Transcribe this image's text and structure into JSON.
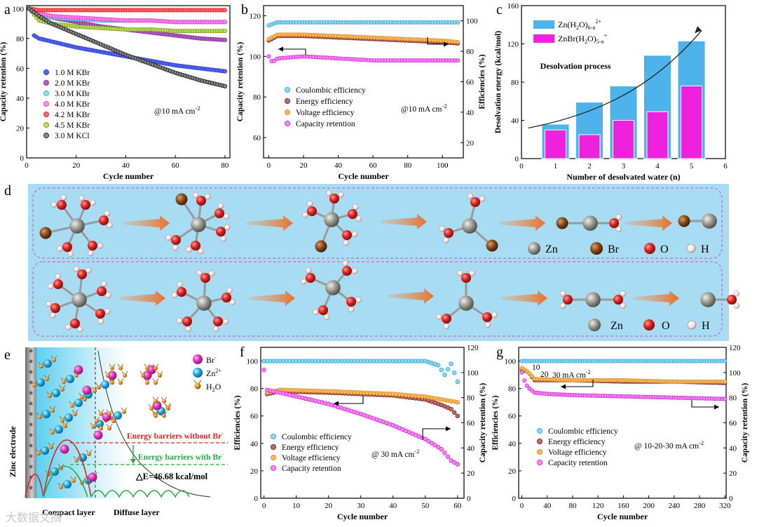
{
  "watermark": "大数据文摘",
  "panel_a": {
    "letter": "a",
    "chart_data": {
      "type": "scatter",
      "xlabel": "Cycle number",
      "ylabel": "Capacity retention (%)",
      "xlim": [
        0,
        82
      ],
      "ylim": [
        0,
        102
      ],
      "xticks": [
        0,
        20,
        40,
        60,
        80
      ],
      "yticks": [
        0,
        20,
        40,
        60,
        80,
        100
      ],
      "annotation": "@10 mA cm",
      "annotation_sup": "-2",
      "series": [
        {
          "name": "1.0 M KBr",
          "color": "#2233cc",
          "fill": "#5566ee",
          "x": [
            3,
            5,
            10,
            15,
            20,
            30,
            40,
            50,
            60,
            70,
            80
          ],
          "y": [
            82,
            80,
            78,
            76,
            74,
            71,
            68,
            65,
            62,
            60,
            58
          ]
        },
        {
          "name": "2.0 M KBr",
          "color": "#7a2a88",
          "fill": "#b060c0",
          "x": [
            1,
            5,
            10,
            20,
            30,
            40,
            50,
            60,
            70,
            80
          ],
          "y": [
            100,
            97,
            94,
            91,
            88,
            86,
            84,
            82,
            80,
            79
          ]
        },
        {
          "name": "3.0 M KBr",
          "color": "#33aacc",
          "fill": "#88ddee",
          "x": [
            1,
            5,
            10,
            20,
            30,
            40,
            50,
            60,
            70,
            80
          ],
          "y": [
            100,
            96,
            94,
            93,
            92,
            92,
            92,
            91,
            91,
            91
          ]
        },
        {
          "name": "4.0 M KBr",
          "color": "#ee33cc",
          "fill": "#ff88ee",
          "x": [
            1,
            5,
            10,
            20,
            30,
            40,
            50,
            60,
            70,
            80
          ],
          "y": [
            100,
            97,
            95,
            94,
            93,
            92,
            92,
            91,
            91,
            91
          ]
        },
        {
          "name": "4.2 M KBr",
          "color": "#dd2222",
          "fill": "#ff6666",
          "x": [
            1,
            5,
            10,
            20,
            30,
            40,
            50,
            60,
            70,
            80
          ],
          "y": [
            100,
            99,
            99,
            99,
            99,
            99,
            99,
            99,
            99,
            99
          ]
        },
        {
          "name": "4.5 M KBr",
          "color": "#7a9922",
          "fill": "#bbdd55",
          "x": [
            1,
            5,
            10,
            20,
            30,
            40,
            50,
            60,
            70,
            80
          ],
          "y": [
            100,
            92,
            90,
            88,
            87,
            86,
            86,
            85,
            85,
            85
          ]
        },
        {
          "name": "3.0 M KCl",
          "color": "#111111",
          "fill": "#888888",
          "x": [
            1,
            5,
            10,
            20,
            30,
            40,
            50,
            60,
            70,
            80
          ],
          "y": [
            100,
            95,
            90,
            83,
            76,
            69,
            63,
            57,
            52,
            48
          ]
        }
      ]
    }
  },
  "panel_b": {
    "letter": "b",
    "chart_data": {
      "type": "scatter",
      "xlabel": "Cycle number",
      "ylabel": "Capacity retention (%)",
      "y2label": "Efficiencies (%)",
      "xlim": [
        -3,
        112
      ],
      "ylim": [
        50,
        125
      ],
      "y2lim": [
        10,
        110
      ],
      "xticks": [
        0,
        20,
        40,
        60,
        80,
        100
      ],
      "yticks": [
        60,
        80,
        100,
        120
      ],
      "y2ticks": [
        20,
        40,
        60,
        80,
        100
      ],
      "annotation": "@10 mA cm",
      "annotation_sup": "-2",
      "series": [
        {
          "name": "Coulombic efficiency",
          "axis": "right",
          "color": "#2ba3d8",
          "fill": "#8fd6f0",
          "x": [
            0,
            5,
            20,
            40,
            60,
            80,
            100,
            110
          ],
          "y": [
            97,
            99,
            99,
            99,
            99,
            99,
            99,
            99
          ]
        },
        {
          "name": "Energy efficiency",
          "axis": "right",
          "color": "#6b1f1f",
          "fill": "#c06a6a",
          "x": [
            0,
            5,
            20,
            40,
            60,
            80,
            100,
            110
          ],
          "y": [
            87,
            90,
            90,
            89,
            88,
            87,
            86,
            85
          ]
        },
        {
          "name": "Voltage efficiency",
          "axis": "right",
          "color": "#e08a18",
          "fill": "#f5b860",
          "x": [
            0,
            5,
            20,
            40,
            60,
            80,
            100,
            110
          ],
          "y": [
            88,
            91,
            91,
            90,
            89,
            88,
            87,
            86
          ]
        },
        {
          "name": "Capacity retention",
          "axis": "left",
          "color": "#cc22cc",
          "fill": "#ff88ff",
          "x": [
            0,
            2,
            5,
            20,
            40,
            60,
            80,
            100,
            110
          ],
          "y": [
            100,
            97,
            99,
            100,
            99,
            98,
            98,
            98,
            98
          ]
        }
      ]
    }
  },
  "panel_c": {
    "letter": "c",
    "chart_data": {
      "type": "bar",
      "xlabel": "Number of desolvated water (n)",
      "ylabel": "Desolvation energy (kcal/mol)",
      "xlim": [
        0,
        6
      ],
      "ylim": [
        0,
        160
      ],
      "xticks": [
        0,
        1,
        2,
        3,
        4,
        5,
        6
      ],
      "yticks": [
        0,
        40,
        80,
        120,
        160
      ],
      "categories": [
        1,
        2,
        3,
        4,
        5
      ],
      "series": [
        {
          "name": "Zn(H2O)6-n 2+",
          "color": "#4db3ea",
          "values": [
            36,
            59,
            76,
            108,
            123
          ]
        },
        {
          "name": "ZnBr(H2O)5-n +",
          "color": "#ee22dd",
          "values": [
            30,
            25,
            40,
            49,
            76
          ]
        }
      ],
      "legend": [
        {
          "main": "Zn(H",
          "sub1": "2",
          "mid": "O)",
          "sub2": "6-n",
          "sup": "2+"
        },
        {
          "main": "ZnBr(H",
          "sub1": "2",
          "mid": "O)",
          "sub2": "5-n",
          "sup": "+"
        }
      ],
      "annotation": "Desolvation process"
    }
  },
  "panel_d": {
    "letter": "d",
    "legend_row1": [
      "Zn",
      "Br",
      "O",
      "H"
    ],
    "legend_row2": [
      "Zn",
      "O",
      "H"
    ]
  },
  "panel_e": {
    "letter": "e",
    "electrode_label": "Zinc electrode",
    "legend": [
      "Br",
      "Zn",
      "H",
      "O"
    ],
    "legend_sup": [
      "-",
      "2+"
    ],
    "legend_sub": "2",
    "barrier_without": "Energy barriers without Br",
    "barrier_with": "Energy barriers with Br",
    "delta": "△E=46.68 kcal/mol",
    "compact_layer": "Compact layer",
    "diffuse_layer": "Diffuse layer"
  },
  "panel_f": {
    "letter": "f",
    "chart_data": {
      "type": "scatter",
      "xlabel": "Cycle number",
      "ylabel": "Efficiencies (%)",
      "y2label": "Capacity retention (%)",
      "xlim": [
        -1,
        62
      ],
      "ylim": [
        0,
        110
      ],
      "y2lim": [
        0,
        120
      ],
      "xticks": [
        0,
        10,
        20,
        30,
        40,
        50,
        60
      ],
      "yticks": [
        0,
        20,
        40,
        60,
        80,
        100
      ],
      "y2ticks": [
        0,
        20,
        40,
        60,
        80,
        100,
        120
      ],
      "annotation": "@ 30 mA cm",
      "annotation_sup": "-2",
      "series": [
        {
          "name": "Coulombic efficiency",
          "axis": "left",
          "color": "#2ba3d8",
          "fill": "#8fd6f0",
          "x": [
            0,
            5,
            20,
            40,
            50,
            54,
            56,
            58,
            60
          ],
          "y": [
            100,
            100,
            100,
            100,
            100,
            97,
            90,
            98,
            85
          ]
        },
        {
          "name": "Energy efficiency",
          "axis": "left",
          "color": "#6b1f1f",
          "fill": "#c06a6a",
          "x": [
            1,
            5,
            20,
            40,
            50,
            55,
            58,
            60
          ],
          "y": [
            76,
            78,
            77,
            75,
            72,
            68,
            65,
            60
          ]
        },
        {
          "name": "Voltage efficiency",
          "axis": "left",
          "color": "#e08a18",
          "fill": "#f5b860",
          "x": [
            1,
            5,
            20,
            40,
            50,
            55,
            60
          ],
          "y": [
            77,
            79,
            78,
            76,
            74,
            72,
            70
          ]
        },
        {
          "name": "Capacity retention",
          "axis": "right",
          "color": "#cc22cc",
          "fill": "#ff88ff",
          "x": [
            0,
            1,
            5,
            10,
            20,
            30,
            40,
            50,
            55,
            58,
            60
          ],
          "y": [
            102,
            86,
            84,
            81,
            75,
            67,
            58,
            47,
            39,
            30,
            27
          ]
        }
      ]
    }
  },
  "panel_g": {
    "letter": "g",
    "chart_data": {
      "type": "scatter",
      "xlabel": "Cycle number",
      "ylabel": "Efficiencies (%)",
      "y2label": "Capacity retention (%)",
      "xlim": [
        -5,
        322
      ],
      "ylim": [
        0,
        110
      ],
      "y2lim": [
        0,
        120
      ],
      "xticks": [
        0,
        40,
        80,
        120,
        160,
        200,
        240,
        280,
        320
      ],
      "yticks": [
        0,
        20,
        40,
        60,
        80,
        100
      ],
      "y2ticks": [
        0,
        20,
        40,
        60,
        80,
        100,
        120
      ],
      "annotation": "@ 10-20-30 mA cm",
      "annotation_sup": "-2",
      "rate_labels": [
        "10",
        "20",
        "30 mA cm"
      ],
      "rate_sup": "-2",
      "series": [
        {
          "name": "Coulombic efficiency",
          "axis": "left",
          "color": "#2ba3d8",
          "fill": "#8fd6f0",
          "x": [
            0,
            20,
            80,
            160,
            240,
            320
          ],
          "y": [
            100,
            100,
            100,
            100,
            100,
            100
          ]
        },
        {
          "name": "Energy efficiency",
          "axis": "left",
          "color": "#6b1f1f",
          "fill": "#c06a6a",
          "x": [
            0,
            10,
            20,
            80,
            160,
            240,
            320
          ],
          "y": [
            94,
            92,
            86,
            86,
            85,
            85,
            84
          ]
        },
        {
          "name": "Voltage efficiency",
          "axis": "left",
          "color": "#e08a18",
          "fill": "#f5b860",
          "x": [
            0,
            10,
            20,
            80,
            160,
            240,
            320
          ],
          "y": [
            95,
            92,
            87,
            86,
            86,
            85,
            85
          ]
        },
        {
          "name": "Capacity retention",
          "axis": "right",
          "color": "#cc22cc",
          "fill": "#ff88ff",
          "x": [
            0,
            5,
            10,
            20,
            40,
            80,
            160,
            240,
            320
          ],
          "y": [
            100,
            92,
            88,
            84,
            83,
            82,
            81,
            80,
            79
          ]
        }
      ]
    }
  }
}
